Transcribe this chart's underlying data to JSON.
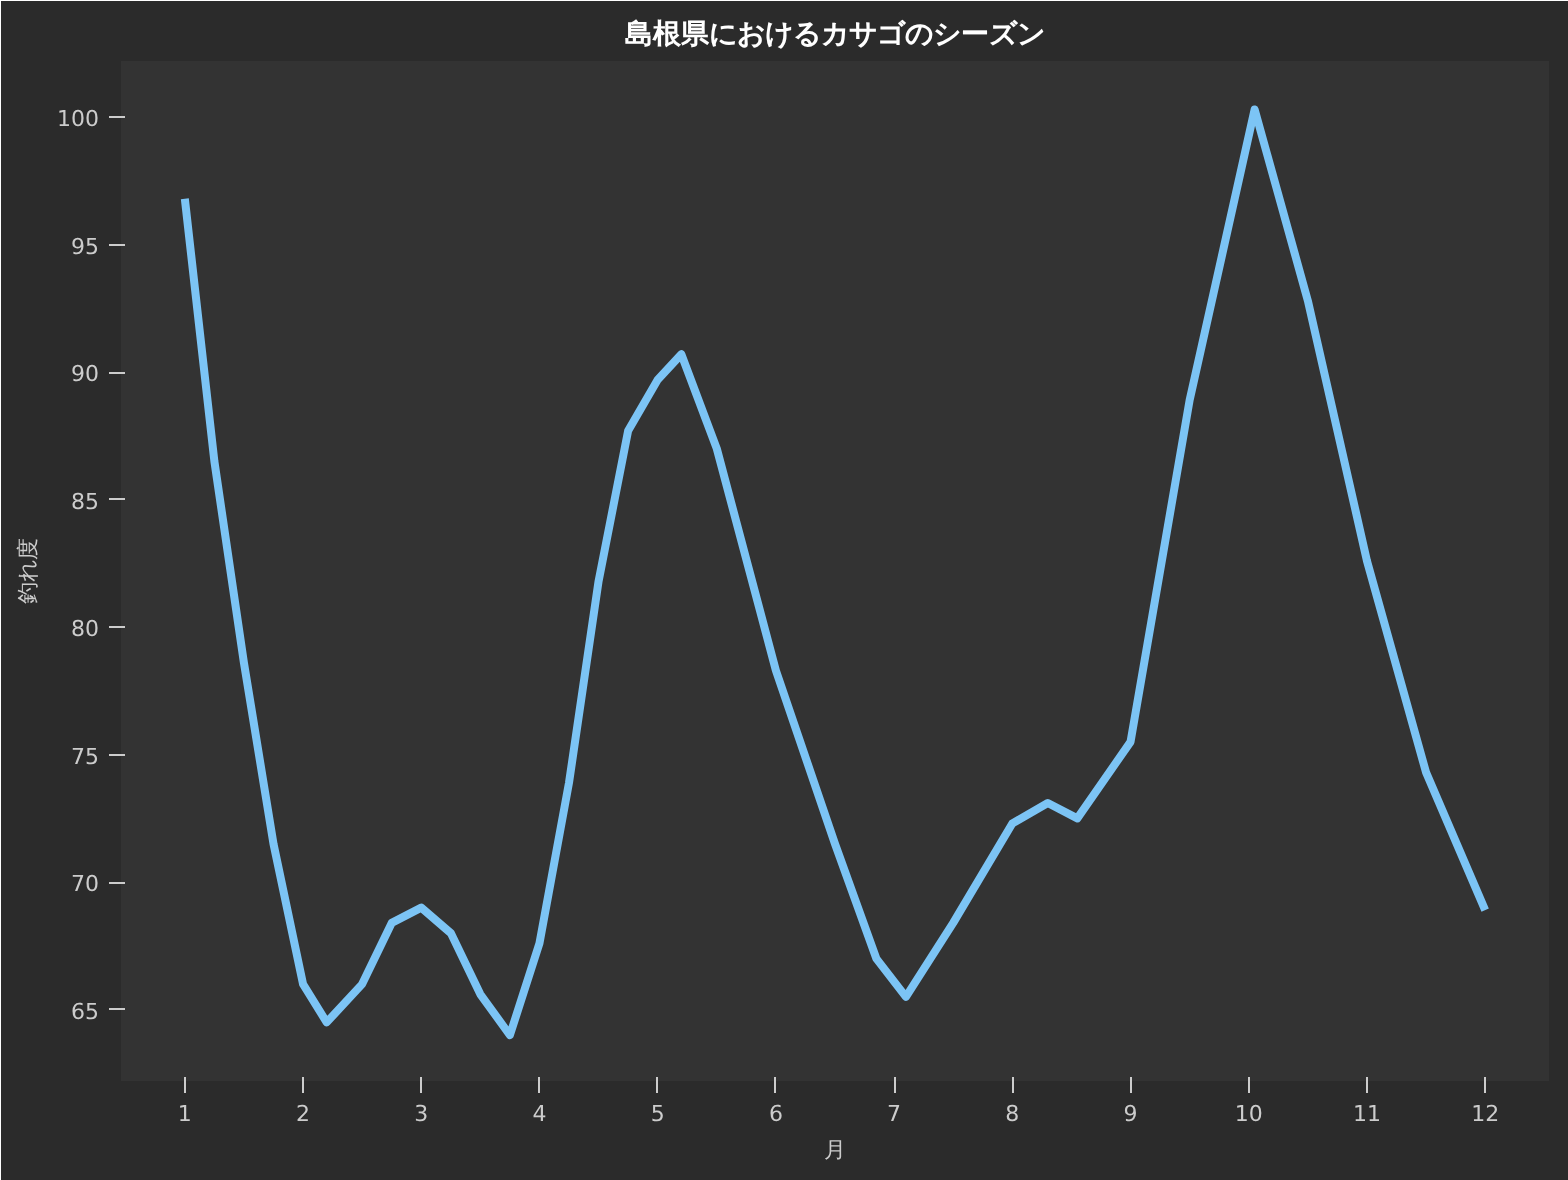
{
  "chart_data": {
    "type": "line",
    "title": "島根県におけるカサゴのシーズン",
    "xlabel": "月",
    "ylabel": "釣れ度",
    "series": [
      {
        "color": "#7cc4f5",
        "x": [
          1,
          1.25,
          1.5,
          1.75,
          2,
          2.2,
          2.5,
          2.75,
          3,
          3.25,
          3.5,
          3.75,
          4,
          4.25,
          4.5,
          4.75,
          5,
          5.2,
          5.5,
          6,
          6.5,
          6.85,
          7.1,
          7.5,
          8,
          8.3,
          8.55,
          9,
          9.5,
          10.05,
          10.5,
          11,
          11.5,
          12
        ],
        "values": [
          96.8,
          86.5,
          78.6,
          71.5,
          66.0,
          64.5,
          66.0,
          68.4,
          69.0,
          68.0,
          65.6,
          64.0,
          67.6,
          73.9,
          81.8,
          87.7,
          89.7,
          90.7,
          87.0,
          78.3,
          71.5,
          67.0,
          65.5,
          68.4,
          72.3,
          73.1,
          72.5,
          75.5,
          88.9,
          100.3,
          92.8,
          82.6,
          74.3,
          68.9
        ]
      }
    ],
    "xlim": [
      0.46,
      12.54
    ],
    "xticks": [
      1,
      2,
      3,
      4,
      5,
      6,
      7,
      8,
      9,
      10,
      11,
      12
    ],
    "ylim": [
      62.2,
      102.2
    ],
    "yticks": [
      65,
      70,
      75,
      80,
      85,
      90,
      95,
      100
    ],
    "grid": false,
    "marker": "none",
    "line_style": "solid"
  }
}
